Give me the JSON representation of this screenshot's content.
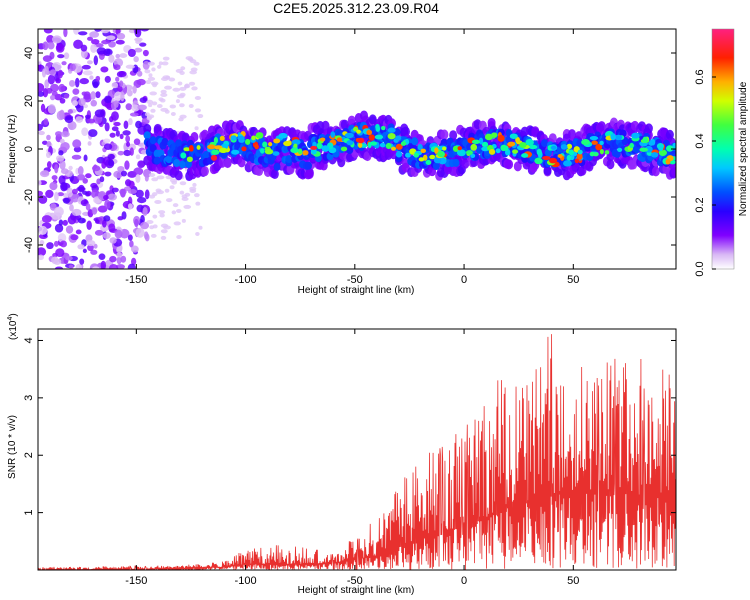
{
  "title": "C2E5.2025.312.23.09.R04",
  "chart_data": [
    {
      "type": "heatmap",
      "name": "spectrogram",
      "xlabel": "Height of straight line (km)",
      "ylabel": "Frequency (Hz)",
      "xlim": [
        -195,
        97
      ],
      "ylim": [
        -50,
        50
      ],
      "xticks": [
        -150,
        -100,
        -50,
        0,
        50
      ],
      "yticks": [
        -40,
        -20,
        0,
        20,
        40
      ],
      "colorbar": {
        "label": "Normalized spectral amplitude",
        "range": [
          0,
          0.75
        ],
        "ticks": [
          0.0,
          0.2,
          0.4,
          0.6
        ],
        "tick_labels": [
          "0.0",
          "0.2",
          "0.4",
          "0.6"
        ]
      },
      "description_bands": [
        {
          "x_range": [
            -195,
            -145
          ],
          "freq_spread": 50,
          "amplitude": 0.05
        },
        {
          "x_range": [
            -145,
            97
          ],
          "freq_center": 0,
          "freq_spread": 8,
          "amplitude_range": [
            0.1,
            0.7
          ]
        }
      ]
    },
    {
      "type": "line",
      "name": "snr",
      "xlabel": "Height of straight line (km)",
      "ylabel": "SNR (10 * v/v)",
      "y_multiplier": "(x10",
      "y_multiplier_exp": "4",
      "y_multiplier_close": ")",
      "xlim": [
        -195,
        97
      ],
      "ylim": [
        0,
        4.2
      ],
      "xticks": [
        -150,
        -100,
        -50,
        0,
        50
      ],
      "yticks": [
        1,
        2,
        3,
        4
      ],
      "series": [
        {
          "name": "SNR",
          "color": "#e8302e",
          "envelope_x": [
            -195,
            -130,
            -110,
            -100,
            -80,
            -60,
            -40,
            -30,
            -20,
            -10,
            0,
            10,
            15,
            20,
            30,
            40,
            50,
            60,
            70,
            80,
            90,
            97
          ],
          "envelope_base": [
            0.0,
            0.02,
            0.05,
            0.1,
            0.1,
            0.12,
            0.25,
            0.4,
            0.55,
            0.65,
            0.8,
            0.9,
            1.0,
            1.1,
            1.2,
            1.3,
            1.4,
            1.4,
            1.4,
            1.3,
            1.3,
            1.3
          ],
          "envelope_peak": [
            0.05,
            0.08,
            0.15,
            0.4,
            0.45,
            0.3,
            0.9,
            1.5,
            2.0,
            2.2,
            2.5,
            2.9,
            3.4,
            3.3,
            3.6,
            4.2,
            3.9,
            3.6,
            3.8,
            3.7,
            3.6,
            3.5
          ]
        }
      ]
    }
  ]
}
